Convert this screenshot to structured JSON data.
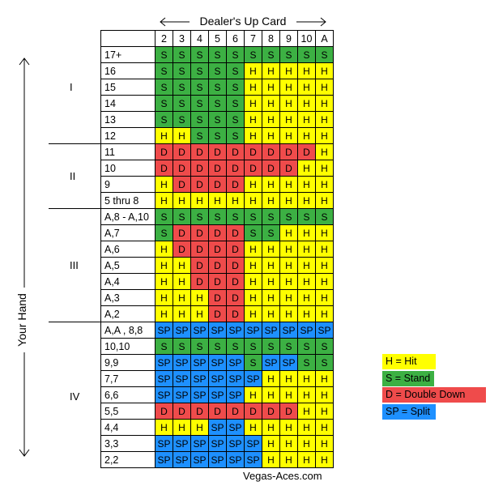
{
  "header": {
    "label": "Dealer's Up Card"
  },
  "side_label": "Your Hand",
  "dealer_cards": [
    "2",
    "3",
    "4",
    "5",
    "6",
    "7",
    "8",
    "9",
    "10",
    "A"
  ],
  "groups": [
    {
      "roman": "I"
    },
    {
      "roman": "II"
    },
    {
      "roman": "III"
    },
    {
      "roman": "IV"
    }
  ],
  "rows": [
    {
      "hand": "17+",
      "actions": [
        "S",
        "S",
        "S",
        "S",
        "S",
        "S",
        "S",
        "S",
        "S",
        "S"
      ]
    },
    {
      "hand": "16",
      "actions": [
        "S",
        "S",
        "S",
        "S",
        "S",
        "H",
        "H",
        "H",
        "H",
        "H"
      ]
    },
    {
      "hand": "15",
      "actions": [
        "S",
        "S",
        "S",
        "S",
        "S",
        "H",
        "H",
        "H",
        "H",
        "H"
      ]
    },
    {
      "hand": "14",
      "actions": [
        "S",
        "S",
        "S",
        "S",
        "S",
        "H",
        "H",
        "H",
        "H",
        "H"
      ]
    },
    {
      "hand": "13",
      "actions": [
        "S",
        "S",
        "S",
        "S",
        "S",
        "H",
        "H",
        "H",
        "H",
        "H"
      ]
    },
    {
      "hand": "12",
      "actions": [
        "H",
        "H",
        "S",
        "S",
        "S",
        "H",
        "H",
        "H",
        "H",
        "H"
      ]
    },
    {
      "hand": "11",
      "actions": [
        "D",
        "D",
        "D",
        "D",
        "D",
        "D",
        "D",
        "D",
        "D",
        "H"
      ]
    },
    {
      "hand": "10",
      "actions": [
        "D",
        "D",
        "D",
        "D",
        "D",
        "D",
        "D",
        "D",
        "H",
        "H"
      ]
    },
    {
      "hand": "9",
      "actions": [
        "H",
        "D",
        "D",
        "D",
        "D",
        "H",
        "H",
        "H",
        "H",
        "H"
      ]
    },
    {
      "hand": "5 thru 8",
      "actions": [
        "H",
        "H",
        "H",
        "H",
        "H",
        "H",
        "H",
        "H",
        "H",
        "H"
      ]
    },
    {
      "hand": "A,8 - A,10",
      "actions": [
        "S",
        "S",
        "S",
        "S",
        "S",
        "S",
        "S",
        "S",
        "S",
        "S"
      ]
    },
    {
      "hand": "A,7",
      "actions": [
        "S",
        "D",
        "D",
        "D",
        "D",
        "S",
        "S",
        "H",
        "H",
        "H"
      ]
    },
    {
      "hand": "A,6",
      "actions": [
        "H",
        "D",
        "D",
        "D",
        "D",
        "H",
        "H",
        "H",
        "H",
        "H"
      ]
    },
    {
      "hand": "A,5",
      "actions": [
        "H",
        "H",
        "D",
        "D",
        "D",
        "H",
        "H",
        "H",
        "H",
        "H"
      ]
    },
    {
      "hand": "A,4",
      "actions": [
        "H",
        "H",
        "D",
        "D",
        "D",
        "H",
        "H",
        "H",
        "H",
        "H"
      ]
    },
    {
      "hand": "A,3",
      "actions": [
        "H",
        "H",
        "H",
        "D",
        "D",
        "H",
        "H",
        "H",
        "H",
        "H"
      ]
    },
    {
      "hand": "A,2",
      "actions": [
        "H",
        "H",
        "H",
        "D",
        "D",
        "H",
        "H",
        "H",
        "H",
        "H"
      ]
    },
    {
      "hand": "A,A , 8,8",
      "actions": [
        "SP",
        "SP",
        "SP",
        "SP",
        "SP",
        "SP",
        "SP",
        "SP",
        "SP",
        "SP"
      ]
    },
    {
      "hand": "10,10",
      "actions": [
        "S",
        "S",
        "S",
        "S",
        "S",
        "S",
        "S",
        "S",
        "S",
        "S"
      ]
    },
    {
      "hand": "9,9",
      "actions": [
        "SP",
        "SP",
        "SP",
        "SP",
        "SP",
        "S",
        "SP",
        "SP",
        "S",
        "S"
      ]
    },
    {
      "hand": "7,7",
      "actions": [
        "SP",
        "SP",
        "SP",
        "SP",
        "SP",
        "SP",
        "H",
        "H",
        "H",
        "H"
      ]
    },
    {
      "hand": "6,6",
      "actions": [
        "SP",
        "SP",
        "SP",
        "SP",
        "SP",
        "H",
        "H",
        "H",
        "H",
        "H"
      ]
    },
    {
      "hand": "5,5",
      "actions": [
        "D",
        "D",
        "D",
        "D",
        "D",
        "D",
        "D",
        "D",
        "H",
        "H"
      ]
    },
    {
      "hand": "4,4",
      "actions": [
        "H",
        "H",
        "H",
        "SP",
        "SP",
        "H",
        "H",
        "H",
        "H",
        "H"
      ]
    },
    {
      "hand": "3,3",
      "actions": [
        "SP",
        "SP",
        "SP",
        "SP",
        "SP",
        "SP",
        "H",
        "H",
        "H",
        "H"
      ]
    },
    {
      "hand": "2,2",
      "actions": [
        "SP",
        "SP",
        "SP",
        "SP",
        "SP",
        "SP",
        "H",
        "H",
        "H",
        "H"
      ]
    }
  ],
  "legend": [
    {
      "code": "H",
      "text": "H = Hit",
      "color": "#ffff00"
    },
    {
      "code": "S",
      "text": "S = Stand",
      "color": "#3cb043"
    },
    {
      "code": "D",
      "text": "D = Double Down",
      "color": "#ef4b4b"
    },
    {
      "code": "SP",
      "text": "SP = Split",
      "color": "#1e90ff"
    }
  ],
  "footer": "Vegas-Aces.com"
}
